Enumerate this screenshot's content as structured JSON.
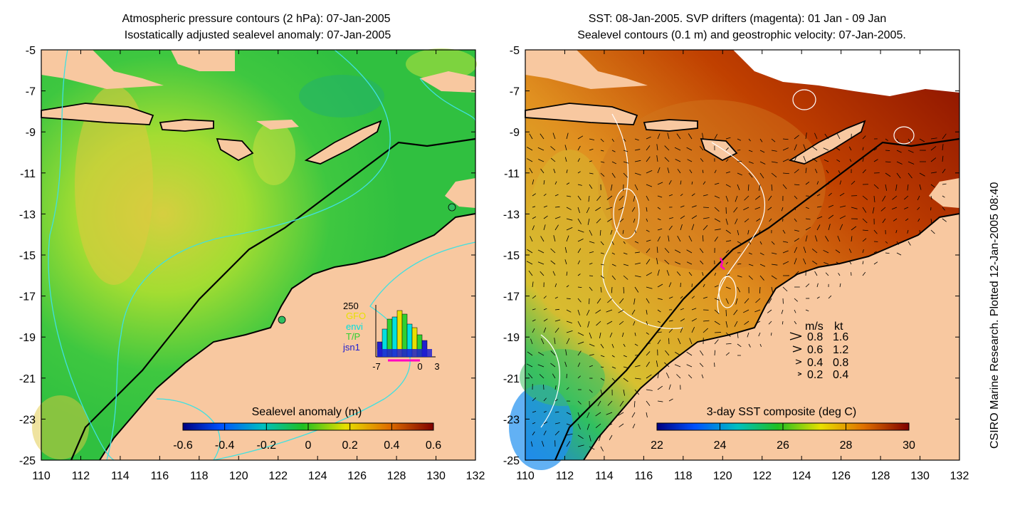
{
  "left_panel": {
    "title_line1": "Atmospheric pressure contours (2 hPa): 07-Jan-2005",
    "title_line2": "Isostatically adjusted sealevel anomaly: 07-Jan-2005",
    "colorbar_label": "Sealevel anomaly (m)",
    "colorbar_ticks": [
      "-0.6",
      "-0.4",
      "-0.2",
      "0",
      "0.2",
      "0.4",
      "0.6"
    ],
    "inset": {
      "ymax_label": "250",
      "legend": [
        {
          "label": "GFO",
          "color": "#e8e000"
        },
        {
          "label": "envi",
          "color": "#00e0e0"
        },
        {
          "label": "T/P",
          "color": "#30d030"
        },
        {
          "label": "jsn1",
          "color": "#2020d0"
        }
      ],
      "x_ticks": [
        "-7",
        "0",
        "3"
      ]
    }
  },
  "right_panel": {
    "title_line1": "SST: 08-Jan-2005. SVP drifters (magenta): 01 Jan - 09 Jan",
    "title_line2": "Sealevel contours (0.1 m) and geostrophic velocity: 07-Jan-2005.",
    "colorbar_label": "3-day SST composite (deg C)",
    "colorbar_ticks": [
      "22",
      "24",
      "26",
      "28",
      "30"
    ],
    "velocity_key": {
      "header_ms": "m/s",
      "header_kt": "kt",
      "rows": [
        {
          "ms": "0.8",
          "kt": "1.6"
        },
        {
          "ms": "0.6",
          "kt": "1.2"
        },
        {
          "ms": "0.4",
          "kt": "0.8"
        },
        {
          "ms": "0.2",
          "kt": "0.4"
        }
      ]
    }
  },
  "axes": {
    "y_ticks": [
      "-5",
      "-7",
      "-9",
      "-11",
      "-13",
      "-15",
      "-17",
      "-19",
      "-21",
      "-23",
      "-25"
    ],
    "x_ticks": [
      "110",
      "112",
      "114",
      "116",
      "118",
      "120",
      "122",
      "124",
      "126",
      "128",
      "130",
      "132"
    ]
  },
  "credit": "CSIRO Marine Research. Plotted 12-Jan-2005 08:40",
  "colors": {
    "land": "#f8c8a0",
    "sla_colormap": [
      "#000080",
      "#0060ff",
      "#00c0c0",
      "#20c020",
      "#e0e000",
      "#e06000",
      "#800000"
    ],
    "sst_colormap": [
      "#000080",
      "#0060ff",
      "#00c0c0",
      "#20c020",
      "#e0e000",
      "#e06000",
      "#800000"
    ],
    "contour_cyan": "#40e0e0",
    "drifter": "#ff00c0"
  }
}
